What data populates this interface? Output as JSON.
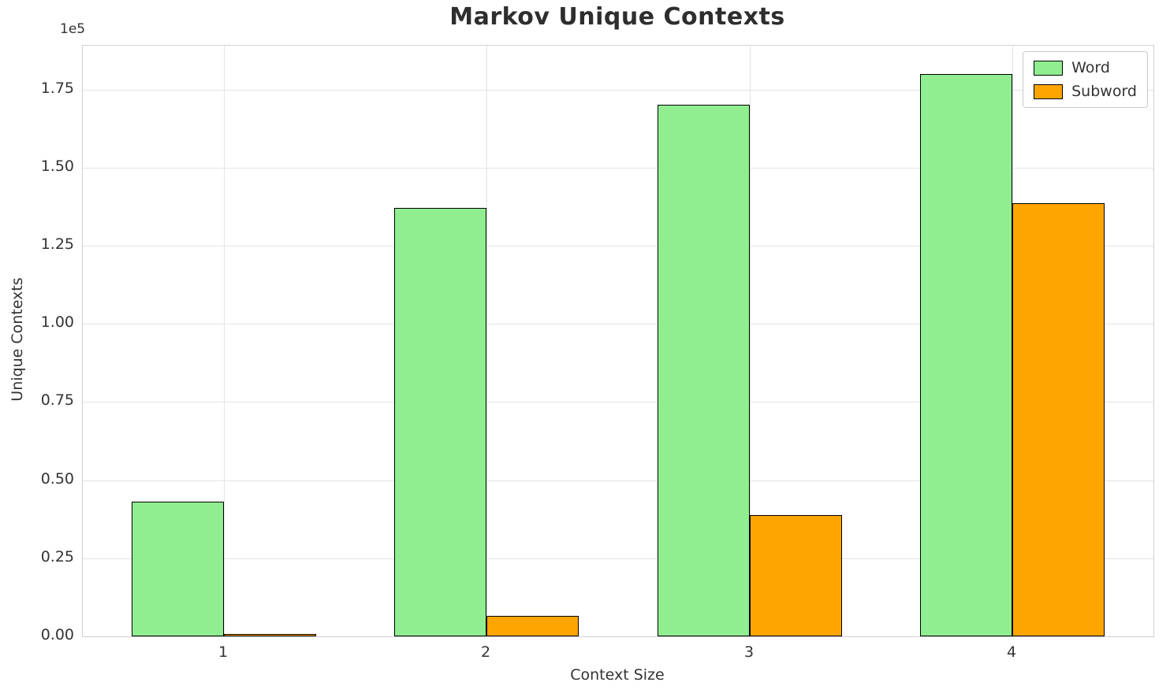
{
  "chart_data": {
    "type": "bar",
    "title": "Markov Unique Contexts",
    "xlabel": "Context Size",
    "ylabel": "Unique Contexts",
    "offset_text": "1e5",
    "categories": [
      "1",
      "2",
      "3",
      "4"
    ],
    "series": [
      {
        "name": "Word",
        "color": "#90EE90",
        "values": [
          43000,
          137000,
          170000,
          180000
        ]
      },
      {
        "name": "Subword",
        "color": "#FFA500",
        "values": [
          800,
          6500,
          38700,
          138500
        ]
      }
    ],
    "ylim": [
      0,
      189000
    ],
    "yticks": [
      0,
      25000,
      50000,
      75000,
      100000,
      125000,
      150000,
      175000
    ],
    "ytick_labels": [
      "0.00",
      "0.25",
      "0.50",
      "0.75",
      "1.00",
      "1.25",
      "1.50",
      "1.75"
    ],
    "grid": true,
    "legend_position": "upper right",
    "bar_edge_color": "#000000"
  }
}
